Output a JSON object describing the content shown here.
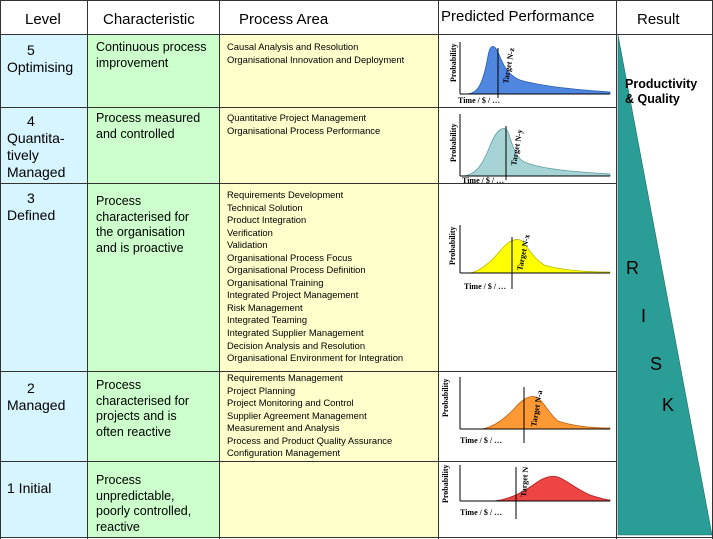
{
  "headers": {
    "level": "Level",
    "characteristic": "Characteristic",
    "process_area": "Process Area",
    "predicted_performance": "Predicted Performance",
    "result": "Result"
  },
  "rows": [
    {
      "level_num": "5",
      "level_name": "Optimising",
      "characteristic": "Continuous process improvement",
      "process_areas": [
        "Causal Analysis and Resolution",
        "Organisational Innovation and Deployment"
      ],
      "chart": {
        "target_label": "Target N-z",
        "x_label": "Time / $ / …",
        "y_label": "Probability",
        "color": "#4f86e0"
      }
    },
    {
      "level_num": "4",
      "level_name": "Quantita-\ntively\nManaged",
      "characteristic": "Process measured and controlled",
      "process_areas": [
        "Quantitative Project Management",
        "Organisational Process Performance"
      ],
      "chart": {
        "target_label": "Target N-y",
        "x_label": "Time / $ / …",
        "y_label": "Probability",
        "color": "#a6d4d6"
      }
    },
    {
      "level_num": "3",
      "level_name": "Defined",
      "characteristic": "Process characterised for the organisation and is proactive",
      "process_areas": [
        "Requirements Development",
        "Technical Solution",
        "Product Integration",
        "Verification",
        "Validation",
        "Organisational Process Focus",
        "Organisational Process Definition",
        "Organisational Training",
        "Integrated Project Management",
        "Risk Management",
        "Integrated Teaming",
        "Integrated Supplier Management",
        "Decision Analysis and Resolution",
        "Organisational Environment for Integration"
      ],
      "chart": {
        "target_label": "Target N-x",
        "x_label": "Time / $ / …",
        "y_label": "Probability",
        "color": "#ffff00"
      }
    },
    {
      "level_num": "2",
      "level_name": "Managed",
      "characteristic": "Process characterised for projects and is often reactive",
      "process_areas": [
        "Requirements Management",
        "Project Planning",
        "Project Monitoring and Control",
        "Supplier Agreement Management",
        "Measurement and Analysis",
        "Process and Product Quality Assurance",
        "Configuration Management"
      ],
      "chart": {
        "target_label": "Target N-a",
        "x_label": "Time / $ / …",
        "y_label": "Probability",
        "color": "#ff9933"
      }
    },
    {
      "level_num": "",
      "level_name": "1 Initial",
      "characteristic": "Process unpredictable, poorly controlled, reactive",
      "process_areas": [],
      "chart": {
        "target_label": "Target N",
        "x_label": "Time / $ / …",
        "y_label": "Probability",
        "color": "#ee4444"
      }
    }
  ],
  "result": {
    "productivity": "Productivity\n& Quality",
    "risk_letters": [
      "R",
      "I",
      "S",
      "K"
    ],
    "triangle_color": "#2a9e96"
  }
}
